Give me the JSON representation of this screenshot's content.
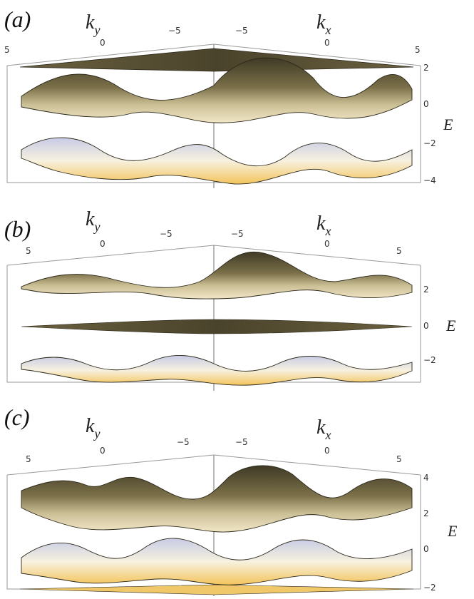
{
  "chart_data": [
    {
      "panel": "(a)",
      "type": "surface3d",
      "kx_ticks": [
        "−5",
        "0",
        "5"
      ],
      "ky_ticks": [
        "5",
        "0",
        "−5"
      ],
      "e_ticks": [
        "2",
        "0",
        "−2",
        "−4"
      ],
      "e_range": [
        -4.5,
        2.5
      ],
      "bands": [
        {
          "kind": "flat",
          "E": 2.0
        },
        {
          "kind": "cosine",
          "center": 0.6,
          "amp": 1.1
        },
        {
          "kind": "cosine",
          "center": -2.8,
          "amp": 1.1
        }
      ]
    },
    {
      "panel": "(b)",
      "type": "surface3d",
      "kx_ticks": [
        "−5",
        "0",
        "5"
      ],
      "ky_ticks": [
        "5",
        "0",
        "−5"
      ],
      "e_ticks": [
        "2",
        "0",
        "−2"
      ],
      "e_range": [
        -3.5,
        3.5
      ],
      "bands": [
        {
          "kind": "cosine",
          "center": 2.6,
          "amp": 0.9
        },
        {
          "kind": "flat",
          "E": 0.0
        },
        {
          "kind": "cosine",
          "center": -2.6,
          "amp": 0.9
        }
      ]
    },
    {
      "panel": "(c)",
      "type": "surface3d",
      "kx_ticks": [
        "−5",
        "0",
        "5"
      ],
      "ky_ticks": [
        "5",
        "0",
        "−5"
      ],
      "e_ticks": [
        "4",
        "0",
        "2",
        "−2"
      ],
      "e_range": [
        -2.5,
        4.5
      ],
      "bands": [
        {
          "kind": "cosine",
          "center": 2.8,
          "amp": 1.1
        },
        {
          "kind": "cosine",
          "center": -0.6,
          "amp": 1.1
        },
        {
          "kind": "flat",
          "E": -2.0
        }
      ]
    }
  ],
  "labels": {
    "panel_a": "(a)",
    "panel_b": "(b)",
    "panel_c": "(c)",
    "ky_main": "k",
    "ky_sub": "y",
    "kx_main": "k",
    "kx_sub": "x",
    "e_label": "E"
  },
  "colors": {
    "surface_dark": "#3f3a26",
    "surface_mid": "#7a6f48",
    "surface_light": "#f1e6c7",
    "surface_blue": "#c7cbe6",
    "surface_warm": "#f3c45c"
  }
}
